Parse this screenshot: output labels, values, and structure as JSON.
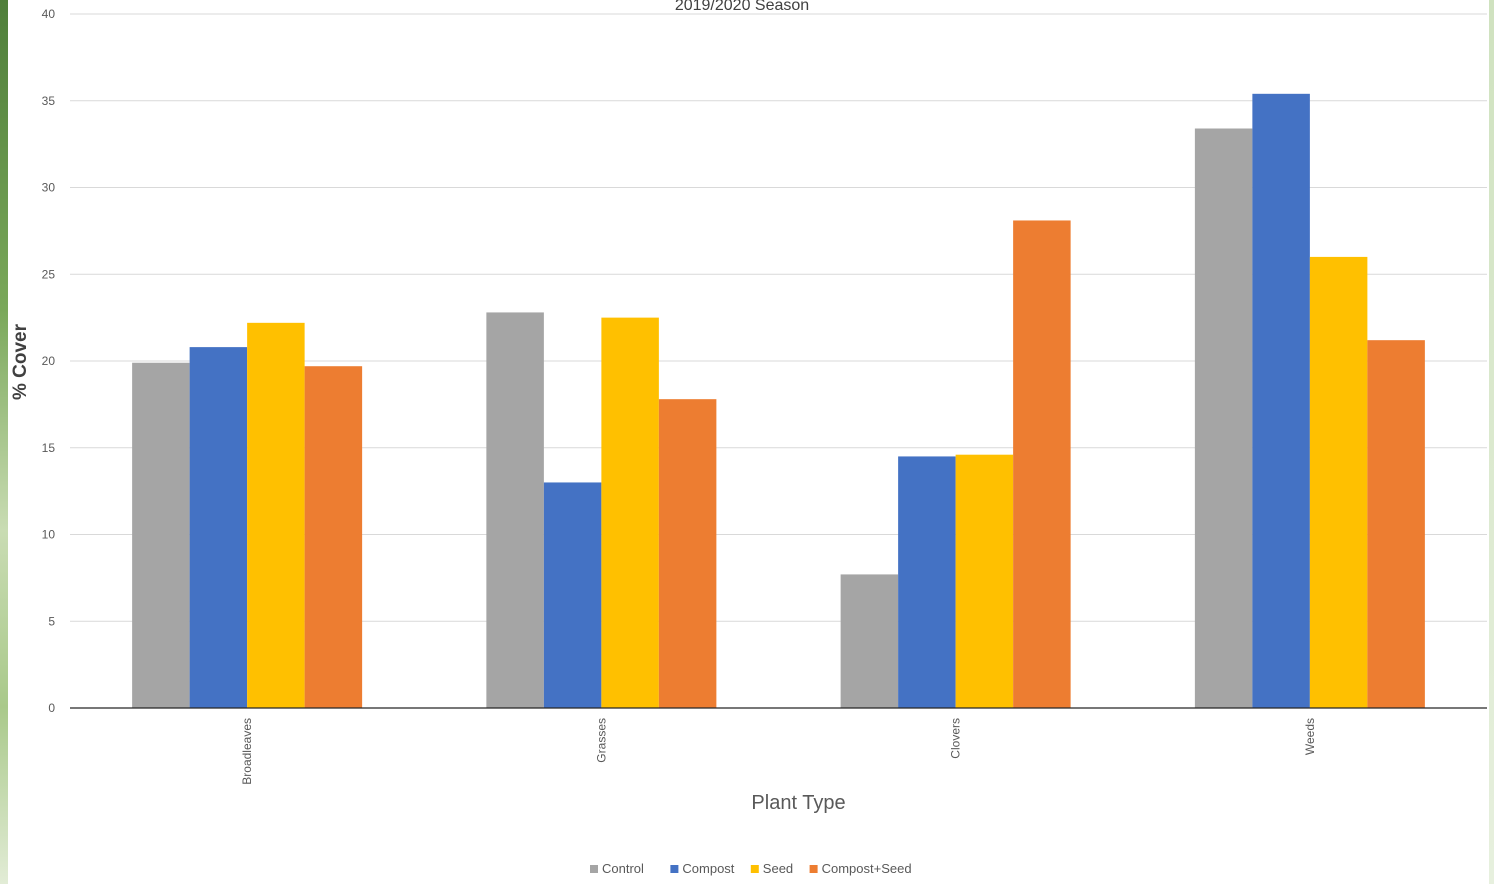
{
  "chart_data": {
    "type": "bar",
    "title": "2019/2020 Season",
    "xlabel": "Plant Type",
    "ylabel": "% Cover",
    "ylim": [
      0,
      40
    ],
    "yticks": [
      0,
      5,
      10,
      15,
      20,
      25,
      30,
      35,
      40
    ],
    "categories": [
      "Broadleaves",
      "Grasses",
      "Clovers",
      "Weeds"
    ],
    "series": [
      {
        "name": "Control",
        "color": "#a5a5a5",
        "values": [
          19.9,
          22.8,
          7.7,
          33.4
        ]
      },
      {
        "name": "Compost",
        "color": "#4472c4",
        "values": [
          20.8,
          13.0,
          14.5,
          35.4
        ]
      },
      {
        "name": "Seed",
        "color": "#ffc000",
        "values": [
          22.2,
          22.5,
          14.6,
          26.0
        ]
      },
      {
        "name": "Compost+Seed",
        "color": "#ed7d31",
        "values": [
          19.7,
          17.8,
          28.1,
          21.2
        ]
      }
    ],
    "grid": true,
    "legend_position": "bottom"
  }
}
